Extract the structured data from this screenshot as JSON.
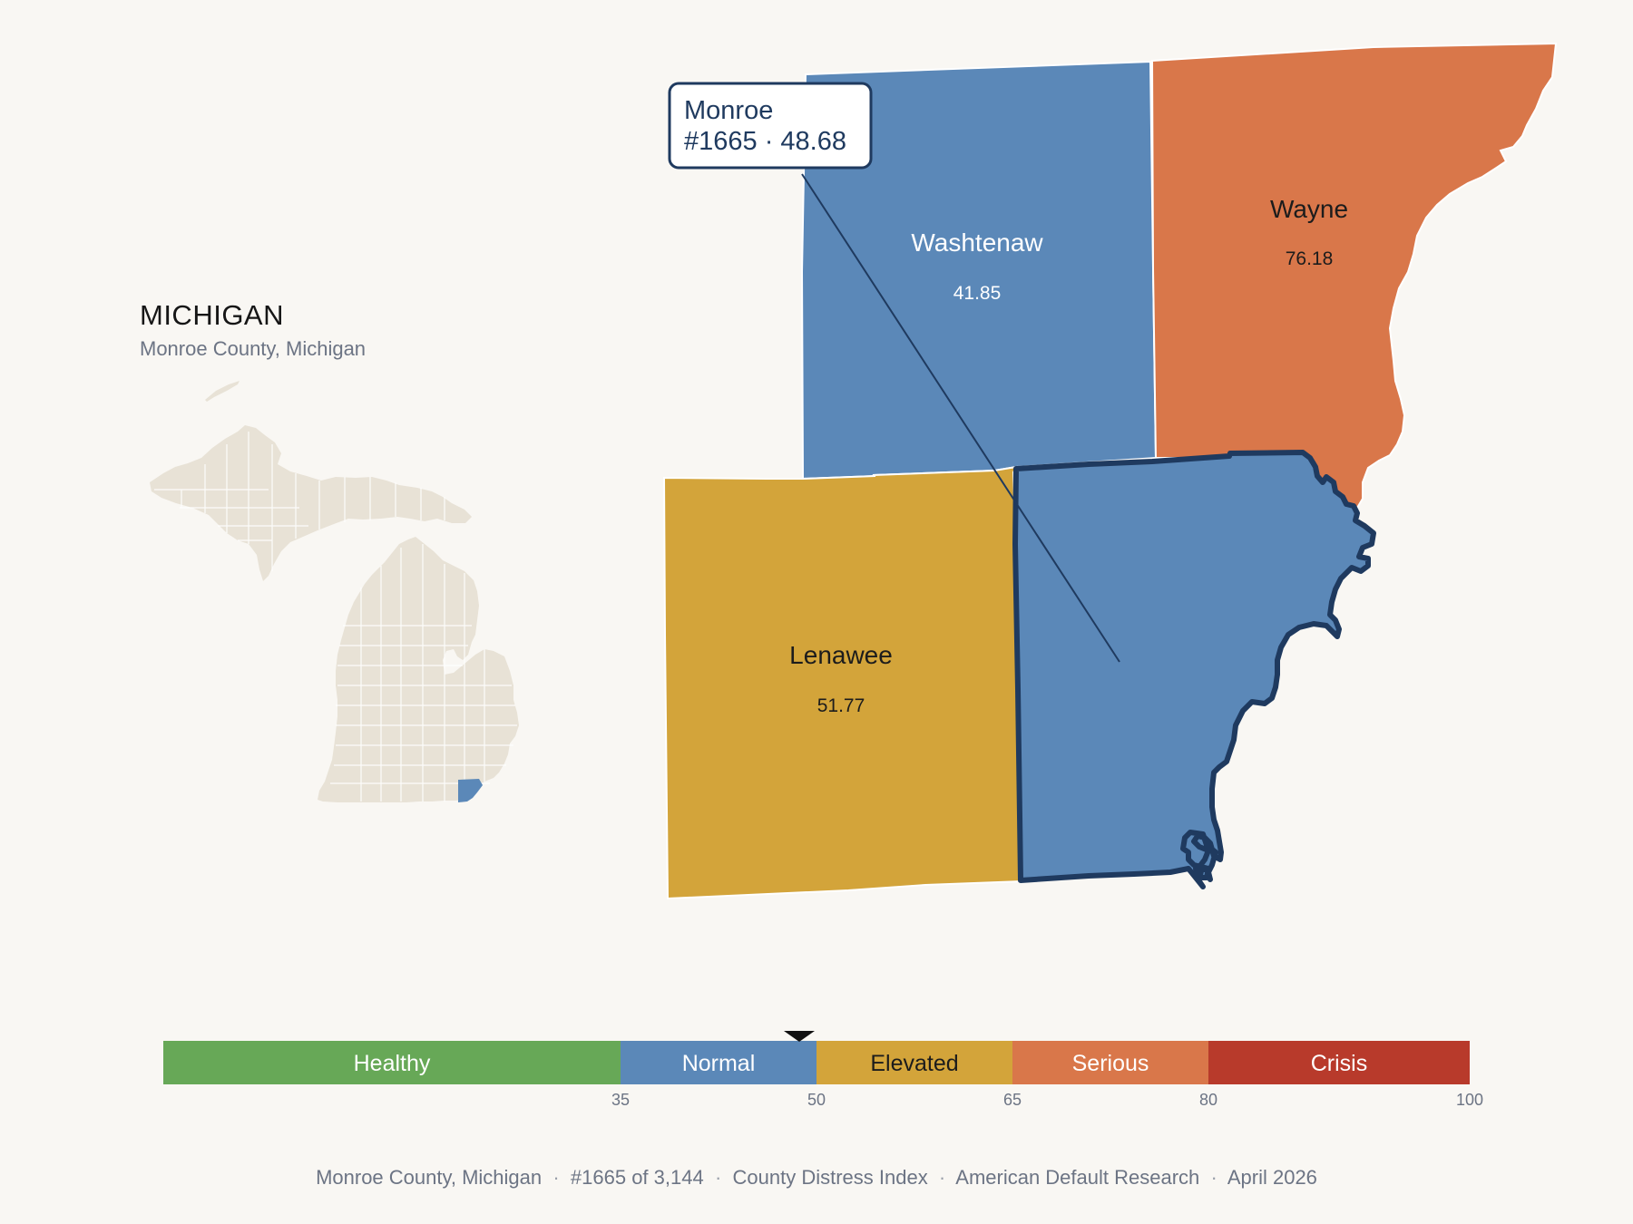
{
  "inset": {
    "state_title": "MICHIGAN",
    "subtitle": "Monroe County, Michigan",
    "base_color": "#e8e2d6",
    "highlight_color": "#5b88b8"
  },
  "counties": [
    {
      "name": "Washtenaw",
      "value": "41.85",
      "category": "Normal",
      "color": "#5b88b8",
      "label_color": "#ffffff"
    },
    {
      "name": "Wayne",
      "value": "76.18",
      "category": "Serious",
      "color": "#d9774a",
      "label_color": "#1c1c1c"
    },
    {
      "name": "Lenawee",
      "value": "51.77",
      "category": "Elevated",
      "color": "#d3a43a",
      "label_color": "#1c1c1c"
    },
    {
      "name": "Monroe",
      "value": "48.68",
      "category": "Normal",
      "color": "#5b88b8",
      "outline": "#1f3a5f"
    }
  ],
  "callout": {
    "line1": "Monroe",
    "line2": "#1665 · 48.68"
  },
  "scale": {
    "min": 0,
    "max": 100,
    "marker_value": 48.68,
    "bands": [
      {
        "label": "Healthy",
        "from": 0,
        "to": 35,
        "color": "#67a857",
        "text_color": "#ffffff"
      },
      {
        "label": "Normal",
        "from": 35,
        "to": 50,
        "color": "#5b88b8",
        "text_color": "#ffffff"
      },
      {
        "label": "Elevated",
        "from": 50,
        "to": 65,
        "color": "#d3a43a",
        "text_color": "#1c1c1c"
      },
      {
        "label": "Serious",
        "from": 65,
        "to": 80,
        "color": "#d9774a",
        "text_color": "#ffffff"
      },
      {
        "label": "Crisis",
        "from": 80,
        "to": 100,
        "color": "#b83a2b",
        "text_color": "#ffffff"
      }
    ],
    "ticks": [
      "35",
      "50",
      "65",
      "80",
      "100"
    ]
  },
  "footer": {
    "county": "Monroe County, Michigan",
    "rank": "#1665 of 3,144",
    "index": "County Distress Index",
    "source": "American Default Research",
    "date": "April 2026"
  }
}
